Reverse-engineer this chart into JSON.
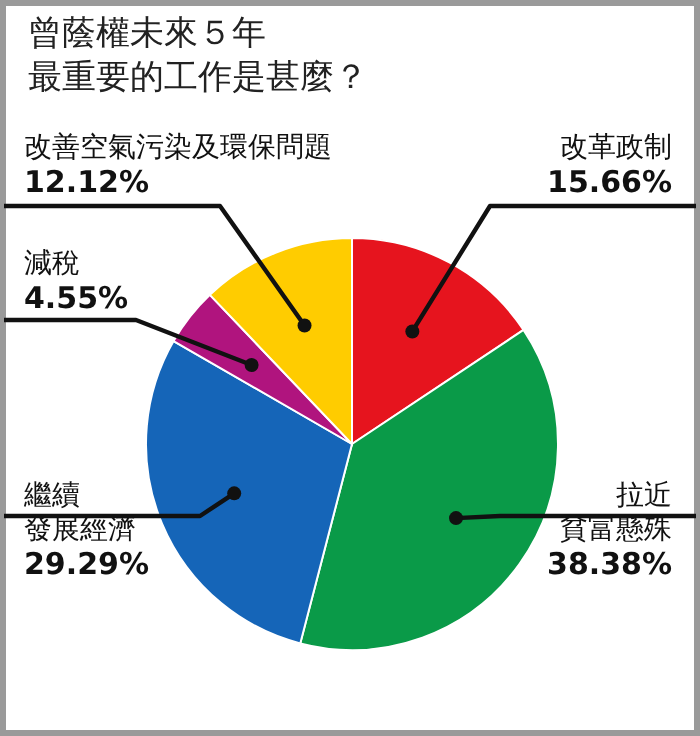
{
  "chart_data": {
    "type": "pie",
    "title": "曾蔭權未來５年最重要的工作是甚麼？",
    "categories": [
      "改革政制",
      "拉近貧富懸殊",
      "繼續發展經濟",
      "減稅",
      "改善空氣污染及環保問題"
    ],
    "values": [
      15.66,
      38.38,
      29.29,
      4.55,
      12.12
    ],
    "value_labels": [
      "15.66%",
      "38.38%",
      "29.29%",
      "4.55%",
      "12.12%"
    ],
    "colors": [
      "#e6141e",
      "#0a9a48",
      "#1565b8",
      "#b0147e",
      "#ffcc00"
    ]
  }
}
